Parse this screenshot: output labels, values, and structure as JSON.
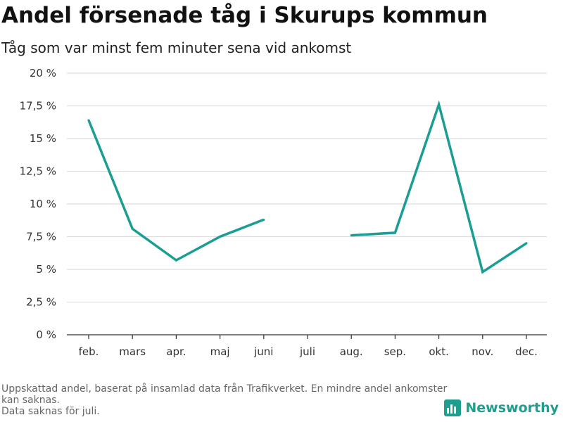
{
  "header": {
    "title": "Andel försenade tåg i Skurups kommun",
    "subtitle": "Tåg som var minst fem minuter sena vid ankomst"
  },
  "footnote": {
    "line1": "Uppskattad andel, baserat på insamlad data från Trafikverket. En mindre andel ankomster kan saknas.",
    "line2": "Data saknas för juli."
  },
  "brand": {
    "name": "Newsworthy",
    "icon": "bar-chart-logo-icon",
    "color": "#1f9e8e"
  },
  "chart_data": {
    "type": "line",
    "title": "Andel försenade tåg i Skurups kommun",
    "subtitle": "Tåg som var minst fem minuter sena vid ankomst",
    "xlabel": "",
    "ylabel": "",
    "categories": [
      "feb.",
      "mars",
      "apr.",
      "maj",
      "juni",
      "juli",
      "aug.",
      "sep.",
      "okt.",
      "nov.",
      "dec."
    ],
    "series": [
      {
        "values": [
          16.4,
          8.1,
          5.7,
          7.5,
          8.8,
          null,
          7.6,
          7.8,
          17.6,
          4.8,
          7.0
        ],
        "color": "#1a9e94"
      }
    ],
    "ylim": [
      0,
      20
    ],
    "yticks": [
      0,
      2.5,
      5,
      7.5,
      10,
      12.5,
      15,
      17.5,
      20
    ],
    "ytick_labels": [
      "0 %",
      "2,5 %",
      "5 %",
      "7,5 %",
      "10 %",
      "12,5 %",
      "15 %",
      "17,5 %",
      "20 %"
    ],
    "grid": true,
    "legend": "none"
  }
}
